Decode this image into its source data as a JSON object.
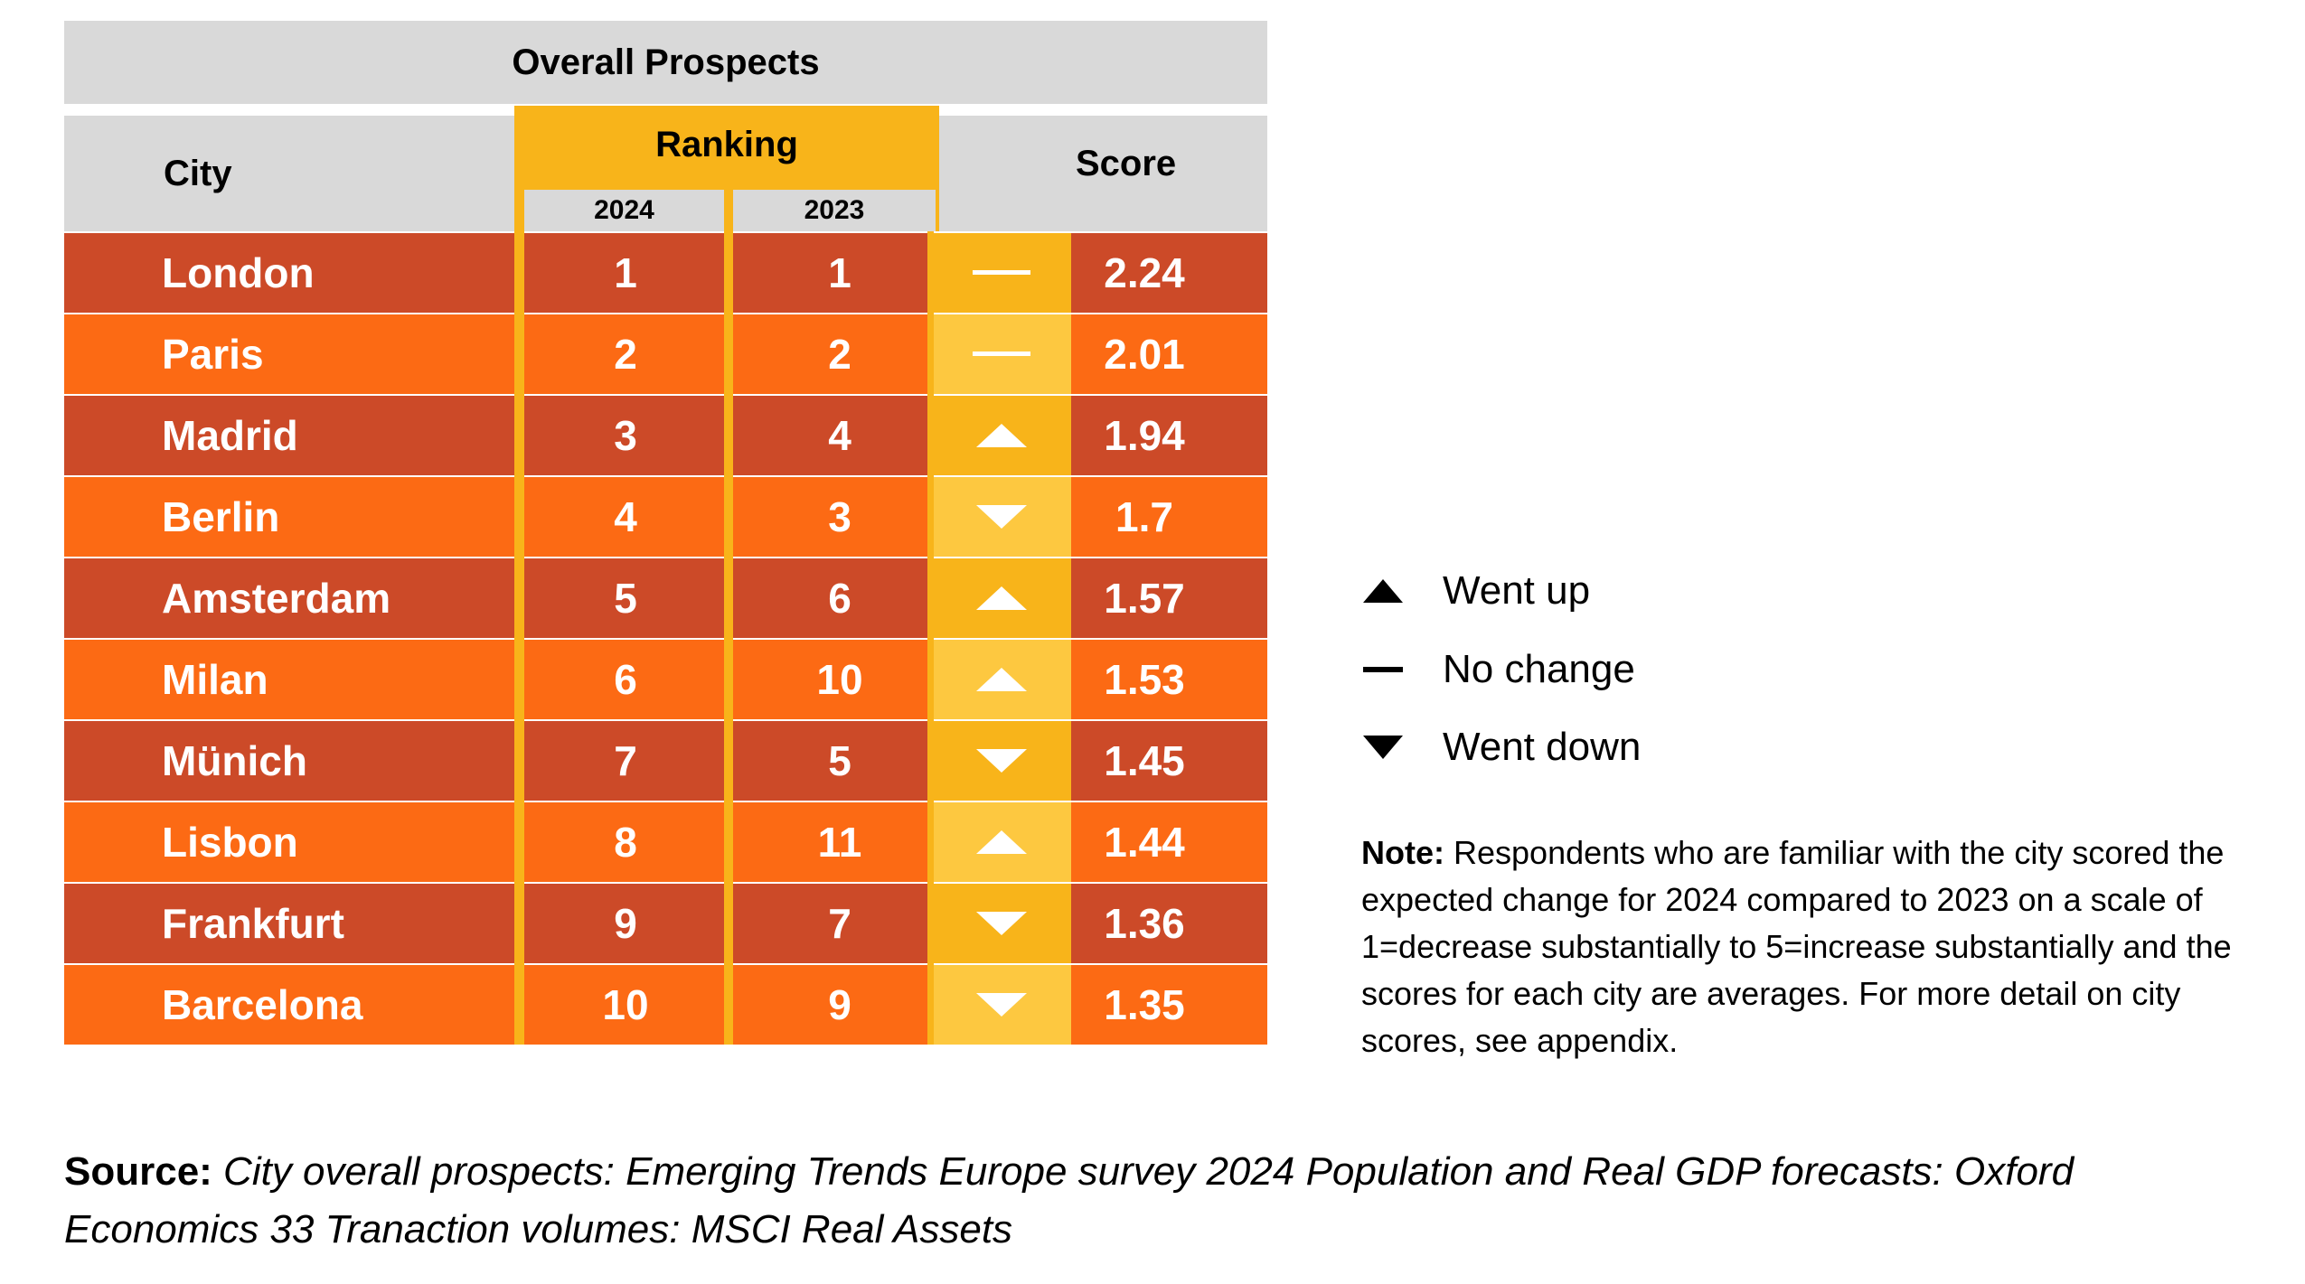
{
  "chart_data": {
    "type": "table",
    "title": "Overall Prospects",
    "columns": {
      "city": "City",
      "ranking": "Ranking",
      "year_2024": "2024",
      "year_2023": "2023",
      "score": "Score"
    },
    "rows": [
      {
        "city": "London",
        "rank_2024": "1",
        "rank_2023": "1",
        "trend": "no-change",
        "score": "2.24"
      },
      {
        "city": "Paris",
        "rank_2024": "2",
        "rank_2023": "2",
        "trend": "no-change",
        "score": "2.01"
      },
      {
        "city": "Madrid",
        "rank_2024": "3",
        "rank_2023": "4",
        "trend": "up",
        "score": "1.94"
      },
      {
        "city": "Berlin",
        "rank_2024": "4",
        "rank_2023": "3",
        "trend": "down",
        "score": "1.7"
      },
      {
        "city": "Amsterdam",
        "rank_2024": "5",
        "rank_2023": "6",
        "trend": "up",
        "score": "1.57"
      },
      {
        "city": "Milan",
        "rank_2024": "6",
        "rank_2023": "10",
        "trend": "up",
        "score": "1.53"
      },
      {
        "city": "Münich",
        "rank_2024": "7",
        "rank_2023": "5",
        "trend": "down",
        "score": "1.45"
      },
      {
        "city": "Lisbon",
        "rank_2024": "8",
        "rank_2023": "11",
        "trend": "up",
        "score": "1.44"
      },
      {
        "city": "Frankfurt",
        "rank_2024": "9",
        "rank_2023": "7",
        "trend": "down",
        "score": "1.36"
      },
      {
        "city": "Barcelona",
        "rank_2024": "10",
        "rank_2023": "9",
        "trend": "down",
        "score": "1.35"
      }
    ]
  },
  "legend": {
    "up": "Went up",
    "no_change": "No change",
    "down": "Went down"
  },
  "note": {
    "label": "Note:",
    "text": " Respondents who are familiar with the city scored the expected change for 2024 compared to 2023 on a scale of 1=decrease substantially to 5=increase substantially and the scores for each city are averages. For more detail on city scores, see appendix."
  },
  "source": {
    "label": "Source:",
    "text": " City overall prospects: Emerging Trends Europe survey 2024 Population and Real GDP forecasts: Oxford Economics 33 Tranaction volumes: MSCI Real Assets"
  },
  "colors": {
    "row_dark": "#cc4a28",
    "row_light": "#fc6a14",
    "rank_accent": "#f8b41a",
    "trend_light": "#fdc840",
    "header_gray": "#d9d9d9",
    "icon_white": "#ffffff",
    "legend_black": "#000000"
  }
}
